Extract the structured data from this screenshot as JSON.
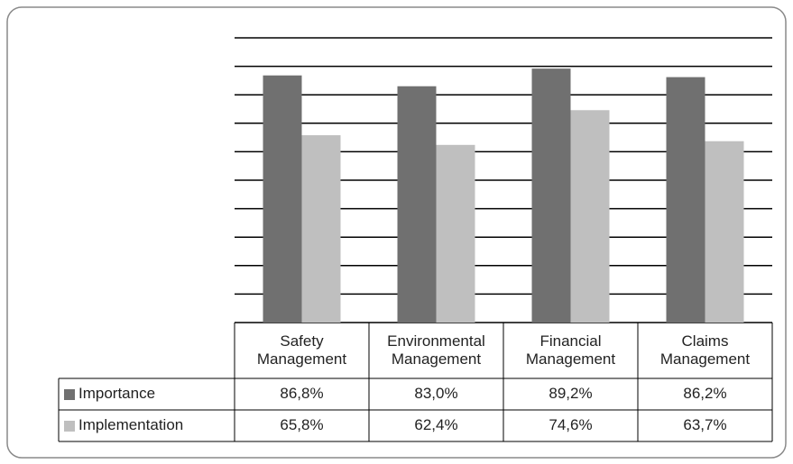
{
  "chart_data": {
    "type": "bar",
    "categories": [
      "Safety Management",
      "Environmental Management",
      "Financial Management",
      "Claims Management"
    ],
    "series": [
      {
        "name": "Importance",
        "color": "#707070",
        "values": [
          86.8,
          83.0,
          89.2,
          86.2
        ],
        "value_labels": [
          "86,8%",
          "83,0%",
          "89,2%",
          "86,2%"
        ]
      },
      {
        "name": "Implementation",
        "color": "#bfbfbf",
        "values": [
          65.8,
          62.4,
          74.6,
          63.7
        ],
        "value_labels": [
          "65,8%",
          "62,4%",
          "74,6%",
          "63,7%"
        ]
      }
    ],
    "ylim": [
      0,
      100
    ],
    "yticks": [
      0,
      10,
      20,
      30,
      40,
      50,
      60,
      70,
      80,
      90,
      100
    ],
    "grid": true
  }
}
